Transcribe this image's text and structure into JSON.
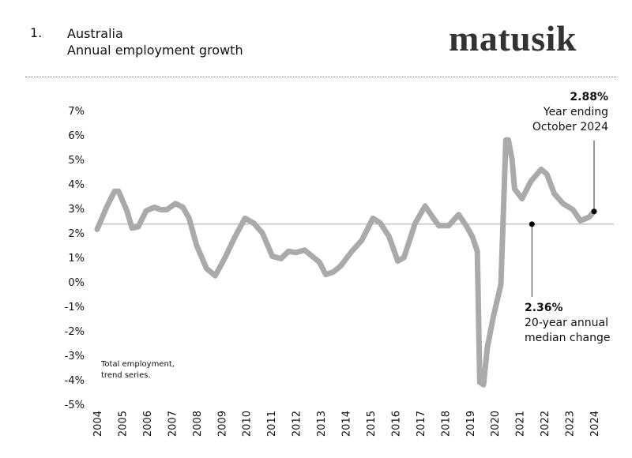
{
  "header": {
    "number": "1.",
    "title": "Australia",
    "subtitle": "Annual employment growth",
    "logo": "matusik"
  },
  "chart_data": {
    "type": "line",
    "title": "Australia",
    "subtitle": "Annual employment growth",
    "xlabel": "",
    "ylabel": "",
    "ylim": [
      -5,
      7
    ],
    "xlim": [
      2004,
      2024
    ],
    "yticks": [
      "7%",
      "6%",
      "5%",
      "4%",
      "3%",
      "2%",
      "1%",
      "0%",
      "-1%",
      "-2%",
      "-3%",
      "-4%",
      "-5%"
    ],
    "ytick_values": [
      7,
      6,
      5,
      4,
      3,
      2,
      1,
      0,
      -1,
      -2,
      -3,
      -4,
      -5
    ],
    "xticks": [
      "2004",
      "2005",
      "2006",
      "2007",
      "2008",
      "2009",
      "2010",
      "2011",
      "2012",
      "2013",
      "2014",
      "2015",
      "2016",
      "2017",
      "2018",
      "2019",
      "2020",
      "2021",
      "2022",
      "2023",
      "2024"
    ],
    "grid": false,
    "line_color": "#aaaaaa",
    "reference_color": "#888888",
    "series": [
      {
        "x": [
          2004.0,
          2004.4,
          2004.7,
          2004.86,
          2005.2,
          2005.4,
          2005.65,
          2005.97,
          2006.3,
          2006.55,
          2006.8,
          2007.15,
          2007.45,
          2007.7,
          2008.0,
          2008.4,
          2008.75,
          2009.15,
          2009.55,
          2009.95,
          2010.3,
          2010.65,
          2011.05,
          2011.4,
          2011.7,
          2012.0,
          2012.35,
          2012.65,
          2012.95,
          2013.2,
          2013.5,
          2013.8,
          2014.25,
          2014.65,
          2015.1,
          2015.4,
          2015.75,
          2016.1,
          2016.35,
          2016.8,
          2017.2,
          2017.5,
          2017.75,
          2018.15,
          2018.55,
          2018.85,
          2019.1,
          2019.3,
          2019.4,
          2019.55,
          2019.7,
          2019.95,
          2020.25,
          2020.45,
          2020.55,
          2020.7,
          2020.8,
          2021.1,
          2021.45,
          2021.87,
          2022.1,
          2022.4,
          2022.75,
          2023.15,
          2023.45,
          2023.8,
          2024.0
        ],
        "y": [
          2.15,
          3.1,
          3.7,
          3.7,
          2.9,
          2.2,
          2.25,
          2.9,
          3.05,
          2.95,
          2.95,
          3.2,
          3.05,
          2.6,
          1.5,
          0.55,
          0.25,
          1.0,
          1.85,
          2.6,
          2.4,
          2.0,
          1.05,
          0.95,
          1.25,
          1.2,
          1.3,
          1.05,
          0.8,
          0.3,
          0.4,
          0.65,
          1.25,
          1.7,
          2.6,
          2.4,
          1.85,
          0.85,
          1.0,
          2.4,
          3.1,
          2.65,
          2.3,
          2.3,
          2.75,
          2.3,
          1.85,
          1.25,
          -4.1,
          -4.2,
          -2.7,
          -1.4,
          -0.1,
          5.8,
          5.8,
          5.0,
          3.8,
          3.4,
          4.1,
          4.6,
          4.4,
          3.6,
          3.2,
          2.95,
          2.5,
          2.65,
          2.88
        ]
      }
    ],
    "reference_line": {
      "value": 2.36
    },
    "annotations": {
      "latest": {
        "x": 2024.0,
        "y": 2.88,
        "value": "2.88%",
        "text1": "Year ending",
        "text2": "October 2024"
      },
      "median": {
        "x": 2021.5,
        "y": 2.36,
        "value": "2.36%",
        "text1": "20-year annual",
        "text2": "median change"
      }
    },
    "note": [
      "Total employment,",
      "trend series."
    ]
  }
}
